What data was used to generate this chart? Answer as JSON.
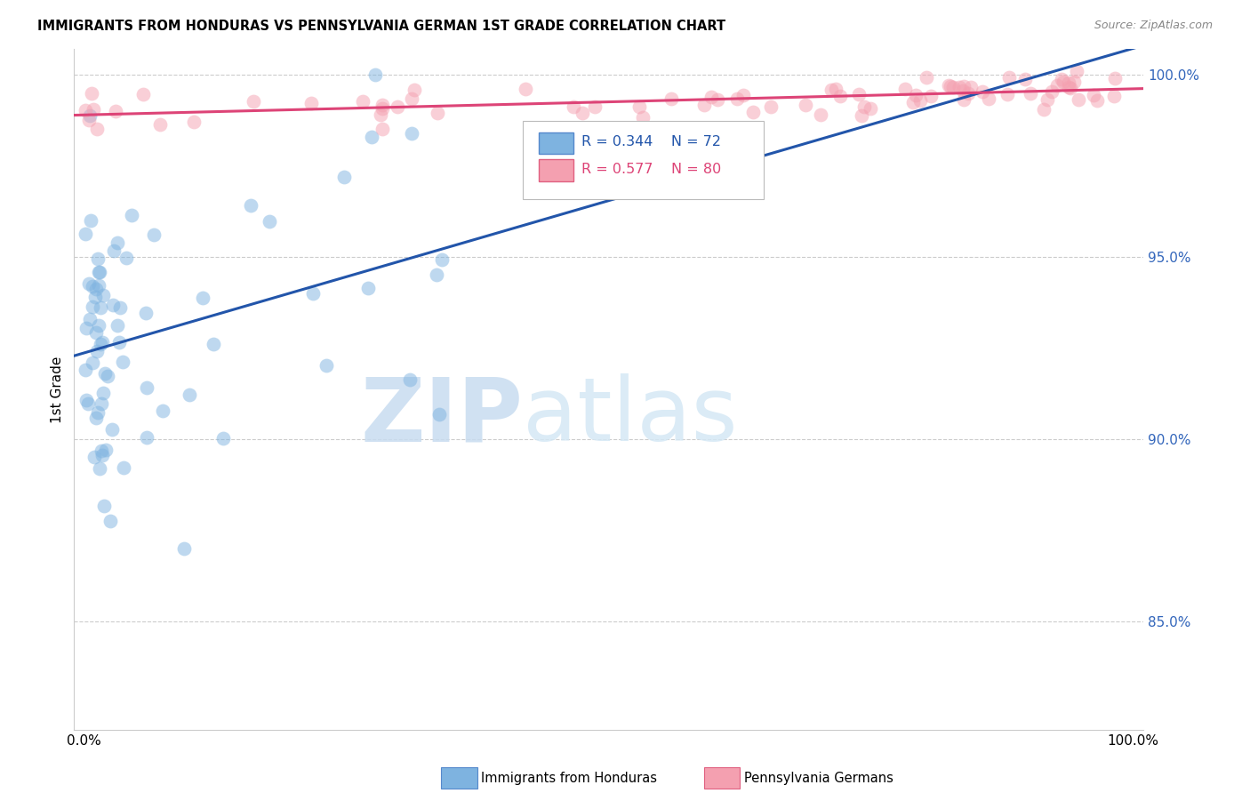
{
  "title": "IMMIGRANTS FROM HONDURAS VS PENNSYLVANIA GERMAN 1ST GRADE CORRELATION CHART",
  "source": "Source: ZipAtlas.com",
  "ylabel": "1st Grade",
  "xlim": [
    -0.01,
    1.01
  ],
  "ylim": [
    0.82,
    1.007
  ],
  "yticks": [
    0.85,
    0.9,
    0.95,
    1.0
  ],
  "ytick_labels": [
    "85.0%",
    "90.0%",
    "95.0%",
    "100.0%"
  ],
  "xticks": [
    0.0,
    0.2,
    0.4,
    0.6,
    0.8,
    1.0
  ],
  "xtick_labels": [
    "0.0%",
    "",
    "",
    "",
    "",
    "100.0%"
  ],
  "legend_R_blue": "R = 0.344",
  "legend_N_blue": "N = 72",
  "legend_R_pink": "R = 0.577",
  "legend_N_pink": "N = 80",
  "blue_color": "#7EB3E0",
  "blue_edge_color": "#5588CC",
  "pink_color": "#F4A0B0",
  "pink_edge_color": "#E06080",
  "blue_line_color": "#2255AA",
  "pink_line_color": "#DD4477",
  "watermark_zip": "ZIP",
  "watermark_atlas": "atlas",
  "watermark_color_zip": "#C5DCF5",
  "watermark_color_atlas": "#D8EAF8",
  "legend_box_color": "#F8F8F8",
  "legend_box_edge": "#CCCCCC",
  "blue_legend_text_color": "#2255AA",
  "pink_legend_text_color": "#DD4477",
  "grid_color": "#CCCCCC",
  "spine_color": "#CCCCCC"
}
